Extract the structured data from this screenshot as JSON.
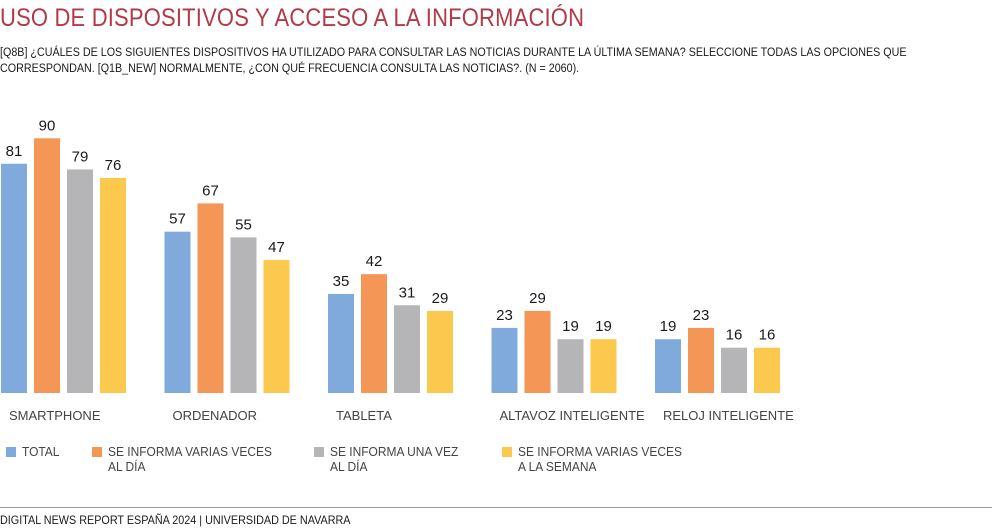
{
  "header": {
    "title": "USO DE DISPOSITIVOS Y ACCESO A LA INFORMACIÓN",
    "subtitle": "[Q8B] ¿CUÁLES DE LOS SIGUIENTES DISPOSITIVOS HA UTILIZADO PARA CONSULTAR LAS NOTICIAS  DURANTE LA ÚLTIMA SEMANA? SELECCIONE TODAS LAS OPCIONES QUE CORRESPONDAN. [Q1B_NEW] NORMALMENTE, ¿CON QUÉ FRECUENCIA CONSULTA LAS NOTICIAS?. (N = 2060)."
  },
  "legend": {
    "items": [
      {
        "label": "TOTAL",
        "color": "#7faadb"
      },
      {
        "label": "SE INFORMA VARIAS VECES\nAL DÍA",
        "color": "#f39656"
      },
      {
        "label": "SE INFORMA UNA VEZ\nAL DÍA",
        "color": "#b5b4b6"
      },
      {
        "label": "SE INFORMA VARIAS VECES\nA LA SEMANA",
        "color": "#fcc84d"
      }
    ]
  },
  "footer": {
    "text": "DIGITAL NEWS REPORT ESPAÑA 2024 | UNIVERSIDAD DE NAVARRA"
  },
  "chart_data": {
    "type": "bar",
    "title": "USO DE DISPOSITIVOS Y ACCESO A LA INFORMACIÓN",
    "xlabel": "",
    "ylabel": "",
    "ylim": [
      0,
      100
    ],
    "grid": false,
    "legend_position": "bottom",
    "categories": [
      "SMARTPHONE",
      "ORDENADOR",
      "TABLETA",
      "ALTAVOZ INTELIGENTE",
      "RELOJ INTELIGENTE"
    ],
    "series": [
      {
        "name": "TOTAL",
        "color": "#7faadb",
        "values": [
          81,
          57,
          35,
          23,
          19
        ]
      },
      {
        "name": "SE INFORMA VARIAS VECES AL DÍA",
        "color": "#f39656",
        "values": [
          90,
          67,
          42,
          29,
          23
        ]
      },
      {
        "name": "SE INFORMA UNA VEZ AL DÍA",
        "color": "#b5b4b6",
        "values": [
          79,
          55,
          31,
          19,
          16
        ]
      },
      {
        "name": "SE INFORMA VARIAS VECES A LA SEMANA",
        "color": "#fcc84d",
        "values": [
          76,
          47,
          29,
          19,
          16
        ]
      }
    ]
  }
}
